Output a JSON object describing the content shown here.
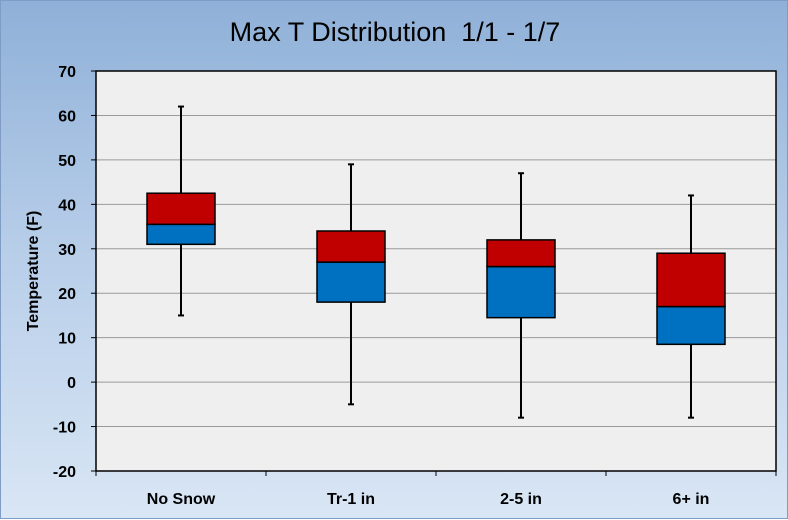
{
  "chart_data": {
    "type": "boxplot",
    "title": "Max T Distribution  1/1 - 1/7",
    "xlabel": "",
    "ylabel": "Temperature (F)",
    "ylim": [
      -20,
      70
    ],
    "yticks": [
      -20,
      -10,
      0,
      10,
      20,
      30,
      40,
      50,
      60,
      70
    ],
    "grid": true,
    "categories": [
      "No Snow",
      "Tr-1 in",
      "2-5 in",
      "6+ in"
    ],
    "boxes": [
      {
        "category": "No Snow",
        "min": 15,
        "q1": 31,
        "median": 35.5,
        "q3": 42.5,
        "max": 62
      },
      {
        "category": "Tr-1 in",
        "min": -5,
        "q1": 18,
        "median": 27,
        "q3": 34,
        "max": 49
      },
      {
        "category": "2-5 in",
        "min": -8,
        "q1": 14.5,
        "median": 26,
        "q3": 32,
        "max": 47
      },
      {
        "category": "6+ in",
        "min": -8,
        "q1": 8.5,
        "median": 17,
        "q3": 29,
        "max": 42
      }
    ],
    "colors": {
      "lower_box": "#0070c0",
      "upper_box": "#c00000",
      "plot_background": "#efefef",
      "grid": "#9a9a9a"
    }
  }
}
